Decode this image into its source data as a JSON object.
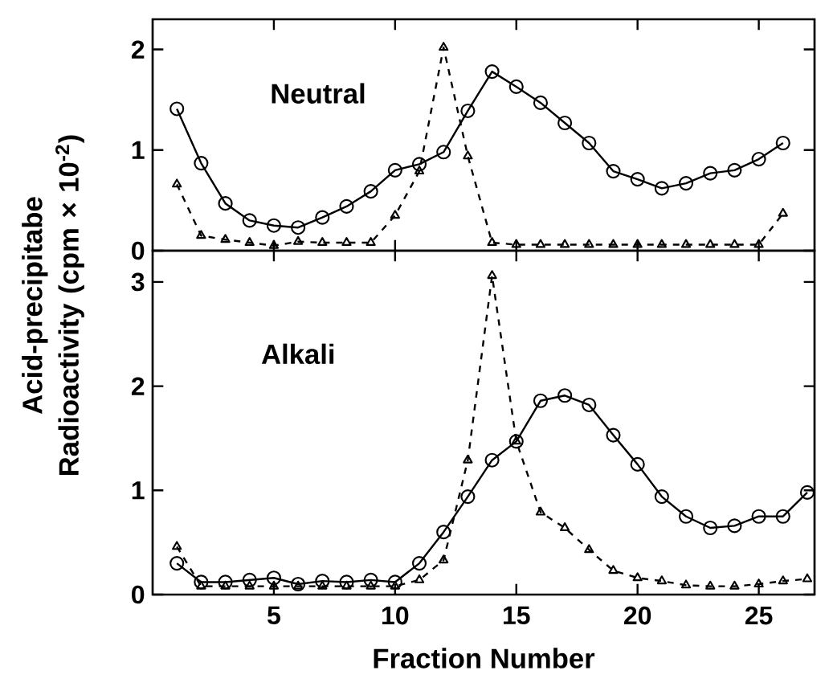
{
  "chart_data": [
    {
      "type": "line",
      "ylabel": "Acid-precipitabe Radioactivity (cpm × 10$^{-2}$)",
      "annotations": [
        "Neutral"
      ],
      "x": [
        1,
        2,
        3,
        4,
        5,
        6,
        7,
        8,
        9,
        10,
        11,
        12,
        13,
        14,
        15,
        16,
        17,
        18,
        19,
        20,
        21,
        22,
        23,
        24,
        25,
        26
      ],
      "series": [
        {
          "color": "#000000",
          "marker": "circle",
          "line_style": "solid",
          "values": [
            1.41,
            0.87,
            0.47,
            0.3,
            0.25,
            0.23,
            0.33,
            0.44,
            0.59,
            0.8,
            0.86,
            0.98,
            1.39,
            1.78,
            1.63,
            1.47,
            1.27,
            1.07,
            0.79,
            0.71,
            0.62,
            0.67,
            0.77,
            0.8,
            0.91,
            1.07
          ]
        },
        {
          "color": "#000000",
          "marker": "triangle",
          "line_style": "dashed",
          "values": [
            0.66,
            0.15,
            0.11,
            0.08,
            0.05,
            0.09,
            0.08,
            0.08,
            0.08,
            0.35,
            0.79,
            2.02,
            0.94,
            0.08,
            0.06,
            0.06,
            0.06,
            0.06,
            0.06,
            0.06,
            0.06,
            0.06,
            0.06,
            0.06,
            0.06,
            0.37
          ]
        }
      ],
      "xlim": [
        0,
        27.3
      ],
      "ylim": [
        0,
        2.3
      ],
      "xticks": [
        5,
        10,
        15,
        20,
        25
      ],
      "yticks": [
        0,
        1,
        2
      ],
      "tick_labels": "y"
    },
    {
      "type": "line",
      "xlabel": "Fraction Number",
      "annotations": [
        "Alkali"
      ],
      "x": [
        1,
        2,
        3,
        4,
        5,
        6,
        7,
        8,
        9,
        10,
        11,
        12,
        13,
        14,
        15,
        16,
        17,
        18,
        19,
        20,
        21,
        22,
        23,
        24,
        25,
        26,
        27
      ],
      "series": [
        {
          "color": "#000000",
          "marker": "circle",
          "line_style": "solid",
          "values": [
            0.3,
            0.12,
            0.12,
            0.14,
            0.16,
            0.1,
            0.13,
            0.12,
            0.14,
            0.12,
            0.3,
            0.6,
            0.94,
            1.29,
            1.47,
            1.86,
            1.91,
            1.82,
            1.53,
            1.25,
            0.94,
            0.75,
            0.64,
            0.66,
            0.75,
            0.75,
            0.98
          ]
        },
        {
          "color": "#000000",
          "marker": "triangle",
          "line_style": "dashed",
          "values": [
            0.46,
            0.08,
            0.08,
            0.08,
            0.08,
            0.08,
            0.08,
            0.08,
            0.08,
            0.08,
            0.14,
            0.33,
            1.29,
            3.06,
            1.47,
            0.79,
            0.64,
            0.43,
            0.23,
            0.16,
            0.13,
            0.09,
            0.08,
            0.08,
            0.1,
            0.13,
            0.15
          ]
        }
      ],
      "xlim": [
        0,
        27.3
      ],
      "ylim": [
        0,
        3.3
      ],
      "xticks": [
        5,
        10,
        15,
        20,
        25
      ],
      "yticks": [
        0,
        1,
        2,
        3
      ]
    }
  ]
}
